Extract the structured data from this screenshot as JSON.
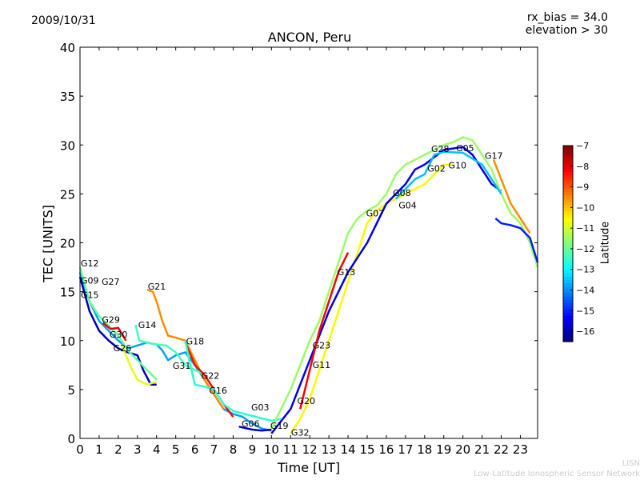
{
  "chart_data": {
    "type": "line",
    "title": "ANCON, Peru",
    "date": "2009/10/31",
    "info": [
      "rx_bias = 34.0",
      "elevation > 30"
    ],
    "xlabel": "Time [UT]",
    "ylabel": "TEC [UNITS]",
    "xlim": [
      0,
      23.9
    ],
    "ylim": [
      0,
      40
    ],
    "xticks": [
      0,
      1,
      2,
      3,
      4,
      5,
      6,
      7,
      8,
      9,
      10,
      11,
      12,
      13,
      14,
      15,
      16,
      17,
      18,
      19,
      20,
      21,
      22,
      23
    ],
    "yticks": [
      0,
      5,
      10,
      15,
      20,
      25,
      30,
      35,
      40
    ],
    "colorbar": {
      "label": "Latitude",
      "range": [
        -16.5,
        -7
      ],
      "ticks": [
        -7,
        -8,
        -9,
        -10,
        -11,
        -12,
        -13,
        -14,
        -15,
        -16
      ]
    },
    "series": [
      {
        "name": "G27",
        "lat": -13.8,
        "points": [
          [
            0,
            17
          ],
          [
            0.5,
            14
          ],
          [
            1,
            12
          ],
          [
            1.5,
            11
          ],
          [
            2,
            10
          ],
          [
            2.5,
            9.2
          ],
          [
            3,
            9.5
          ],
          [
            3.5,
            9.8
          ],
          [
            4,
            9.6
          ],
          [
            4.3,
            9
          ],
          [
            4.6,
            8
          ],
          [
            5,
            8.5
          ],
          [
            5.5,
            8.8
          ],
          [
            6,
            7.5
          ],
          [
            6.5,
            6
          ],
          [
            7,
            4.5
          ],
          [
            7.5,
            3
          ],
          [
            8,
            2.5
          ],
          [
            8.5,
            2.2
          ],
          [
            9,
            1.5
          ],
          [
            9.5,
            1
          ],
          [
            10,
            0.8
          ]
        ]
      },
      {
        "name": "G09",
        "lat": -16,
        "points": [
          [
            0,
            16.5
          ],
          [
            0.5,
            13
          ],
          [
            1,
            11
          ],
          [
            1.5,
            10
          ],
          [
            2,
            9.2
          ],
          [
            2.5,
            8.8
          ],
          [
            3,
            8.5
          ],
          [
            3.3,
            7
          ],
          [
            3.7,
            5.5
          ],
          [
            4,
            5.5
          ]
        ]
      },
      {
        "name": "G12",
        "lat": -12,
        "points": [
          [
            0,
            17.5
          ],
          [
            0.5,
            14
          ],
          [
            1,
            12.5
          ],
          [
            1.5,
            11.5
          ],
          [
            2,
            10.5
          ],
          [
            2.5,
            9
          ],
          [
            3,
            8
          ],
          [
            3.5,
            7
          ],
          [
            4,
            6
          ]
        ]
      },
      {
        "name": "G29",
        "lat": -8,
        "points": [
          [
            1.2,
            11.8
          ],
          [
            1.6,
            11.2
          ],
          [
            2,
            11.3
          ],
          [
            2.4,
            10
          ]
        ]
      },
      {
        "name": "G21",
        "lat": -9.5,
        "points": [
          [
            3.5,
            15.2
          ],
          [
            3.8,
            15
          ],
          [
            4,
            14
          ],
          [
            4.3,
            12
          ],
          [
            4.6,
            10.5
          ],
          [
            5,
            10.3
          ],
          [
            5.5,
            10
          ],
          [
            6,
            8
          ],
          [
            6.5,
            6
          ],
          [
            7,
            4.5
          ],
          [
            7.5,
            3
          ]
        ]
      },
      {
        "name": "G14",
        "lat": -12.3,
        "points": [
          [
            2.9,
            11.6
          ],
          [
            3.1,
            10
          ],
          [
            3.5,
            9.8
          ],
          [
            4,
            9.6
          ],
          [
            4.5,
            9.5
          ],
          [
            5,
            8.8
          ],
          [
            5.5,
            7.5
          ],
          [
            6,
            7
          ],
          [
            6.5,
            6.5
          ]
        ]
      },
      {
        "name": "G26",
        "lat": -10.8,
        "points": [
          [
            2.2,
            9.5
          ],
          [
            2.6,
            7.5
          ],
          [
            3,
            6
          ],
          [
            3.5,
            5.5
          ],
          [
            4,
            5.8
          ]
        ]
      },
      {
        "name": "G18",
        "lat": -8.3,
        "points": [
          [
            5.5,
            9.8
          ],
          [
            6,
            7.5
          ],
          [
            6.5,
            6.5
          ],
          [
            7,
            5
          ],
          [
            7.5,
            3.5
          ],
          [
            8,
            2.2
          ]
        ]
      },
      {
        "name": "G16",
        "lat": -12.5,
        "points": [
          [
            5.5,
            10
          ],
          [
            5.7,
            8
          ],
          [
            6,
            5.5
          ],
          [
            6.5,
            5.3
          ],
          [
            7,
            5
          ],
          [
            7.5,
            3.5
          ],
          [
            8,
            2.8
          ],
          [
            9,
            2.3
          ],
          [
            10,
            1.8
          ],
          [
            10.5,
            2
          ]
        ]
      },
      {
        "name": "G06",
        "lat": -15.8,
        "points": [
          [
            8.3,
            1.2
          ],
          [
            9,
            0.9
          ],
          [
            9.5,
            0.8
          ],
          [
            10,
            0.9
          ]
        ]
      },
      {
        "name": "G20",
        "lat": -10.5,
        "points": [
          [
            11,
            0.5
          ],
          [
            11.5,
            2
          ],
          [
            12,
            4
          ],
          [
            12.5,
            7
          ],
          [
            13,
            10
          ],
          [
            13.5,
            13
          ],
          [
            14,
            16
          ],
          [
            14.5,
            19
          ],
          [
            15,
            22
          ],
          [
            15.5,
            23.3
          ],
          [
            16,
            24
          ],
          [
            16.5,
            24.5
          ],
          [
            17,
            25
          ],
          [
            18,
            26
          ],
          [
            19,
            28
          ],
          [
            19.5,
            28
          ]
        ]
      },
      {
        "name": "G13",
        "lat": -15.5,
        "points": [
          [
            10,
            0.5
          ],
          [
            11,
            3
          ],
          [
            12,
            8
          ],
          [
            13,
            13
          ],
          [
            14,
            17
          ],
          [
            14.5,
            18.5
          ],
          [
            15,
            20
          ],
          [
            15.5,
            22
          ],
          [
            16,
            24
          ],
          [
            16.5,
            25
          ],
          [
            17,
            26
          ],
          [
            17.5,
            27.5
          ],
          [
            18,
            28
          ],
          [
            19,
            29.5
          ],
          [
            20,
            29.8
          ],
          [
            20.5,
            29
          ],
          [
            21,
            27.5
          ],
          [
            21.5,
            26
          ],
          [
            22,
            25.3
          ]
        ]
      },
      {
        "name": "G07",
        "lat": -11.5,
        "points": [
          [
            10,
            1
          ],
          [
            11,
            5
          ],
          [
            12,
            10
          ],
          [
            12.5,
            12
          ],
          [
            13,
            15
          ],
          [
            13.5,
            18
          ],
          [
            14,
            21
          ],
          [
            14.5,
            22.5
          ],
          [
            15,
            23.3
          ],
          [
            15.5,
            23.8
          ],
          [
            16,
            25
          ],
          [
            16.5,
            27
          ],
          [
            17,
            28
          ],
          [
            17.5,
            28.5
          ],
          [
            18,
            29
          ],
          [
            18.5,
            29.5
          ],
          [
            19,
            30
          ],
          [
            19.5,
            30.3
          ],
          [
            20,
            30.8
          ],
          [
            20.5,
            30.5
          ],
          [
            21,
            29
          ],
          [
            21.5,
            27.5
          ],
          [
            22,
            25
          ],
          [
            22.5,
            23
          ],
          [
            23,
            22
          ],
          [
            23.5,
            20
          ],
          [
            23.9,
            17.5
          ]
        ]
      },
      {
        "name": "G23",
        "lat": -8.2,
        "points": [
          [
            11.5,
            3
          ],
          [
            12,
            7
          ],
          [
            12.5,
            11
          ],
          [
            13,
            14
          ],
          [
            13.5,
            17
          ],
          [
            14,
            19
          ]
        ]
      },
      {
        "name": "G02",
        "lat": -13.5,
        "points": [
          [
            16.5,
            24.5
          ],
          [
            17,
            25.5
          ],
          [
            17.5,
            26.5
          ],
          [
            18,
            27
          ],
          [
            18.5,
            29
          ],
          [
            19,
            29.3
          ],
          [
            20,
            29.2
          ],
          [
            21,
            28
          ],
          [
            22,
            25
          ]
        ]
      },
      {
        "name": "G17",
        "lat": -9.5,
        "points": [
          [
            21.6,
            28.5
          ],
          [
            22,
            26.5
          ],
          [
            22.5,
            24
          ],
          [
            23,
            22.5
          ],
          [
            23.5,
            21
          ]
        ]
      },
      {
        "name": "G10",
        "lat": -15,
        "points": [
          [
            21.7,
            22.5
          ],
          [
            22,
            22
          ],
          [
            22.5,
            21.8
          ],
          [
            23,
            21.5
          ],
          [
            23.5,
            20.5
          ],
          [
            23.9,
            18
          ]
        ]
      }
    ],
    "annotations": [
      {
        "text": "G12",
        "x": 0,
        "y": 17.6
      },
      {
        "text": "G09",
        "x": 0,
        "y": 16.8
      },
      {
        "text": "G15",
        "x": 0,
        "y": 16.3
      },
      {
        "text": "G27",
        "x": 0,
        "y": 15.7
      },
      {
        "text": "G21",
        "x": 3.5,
        "y": 15.2
      },
      {
        "text": "G29",
        "x": 1.1,
        "y": 11.8
      },
      {
        "text": "G14",
        "x": 3,
        "y": 11.3
      },
      {
        "text": "G30",
        "x": 1.5,
        "y": 10.3
      },
      {
        "text": "G26",
        "x": 1.7,
        "y": 9.9
      },
      {
        "text": "G18",
        "x": 5.5,
        "y": 9.6
      },
      {
        "text": "G31",
        "x": 4.8,
        "y": 7.1
      },
      {
        "text": "G22",
        "x": 6.3,
        "y": 6.1
      },
      {
        "text": "G16",
        "x": 6.7,
        "y": 4.6
      },
      {
        "text": "G06",
        "x": 8.4,
        "y": 1.2
      },
      {
        "text": "G03",
        "x": 8.9,
        "y": 0.9
      },
      {
        "text": "G19",
        "x": 9.9,
        "y": 1
      },
      {
        "text": "G32",
        "x": 9.9,
        "y": 0.3
      },
      {
        "text": "G20",
        "x": 11.3,
        "y": 3.5
      },
      {
        "text": "G23",
        "x": 12.1,
        "y": 9.2
      },
      {
        "text": "G11",
        "x": 12.1,
        "y": 8.2
      },
      {
        "text": "G13",
        "x": 13.4,
        "y": 16.7
      },
      {
        "text": "G07",
        "x": 14.9,
        "y": 22.7
      },
      {
        "text": "G08",
        "x": 16.3,
        "y": 24.8
      },
      {
        "text": "G04",
        "x": 16.6,
        "y": 24.5
      },
      {
        "text": "G02",
        "x": 18.1,
        "y": 27.3
      },
      {
        "text": "G28",
        "x": 18.3,
        "y": 29.3
      },
      {
        "text": "G10",
        "x": 19.2,
        "y": 28.6
      },
      {
        "text": "G05",
        "x": 19.6,
        "y": 28.4
      },
      {
        "text": "G17",
        "x": 21.1,
        "y": 28.6
      }
    ]
  },
  "footer": {
    "short": "LISN",
    "long": "Low-Latitude Ionospheric Sensor Network"
  }
}
